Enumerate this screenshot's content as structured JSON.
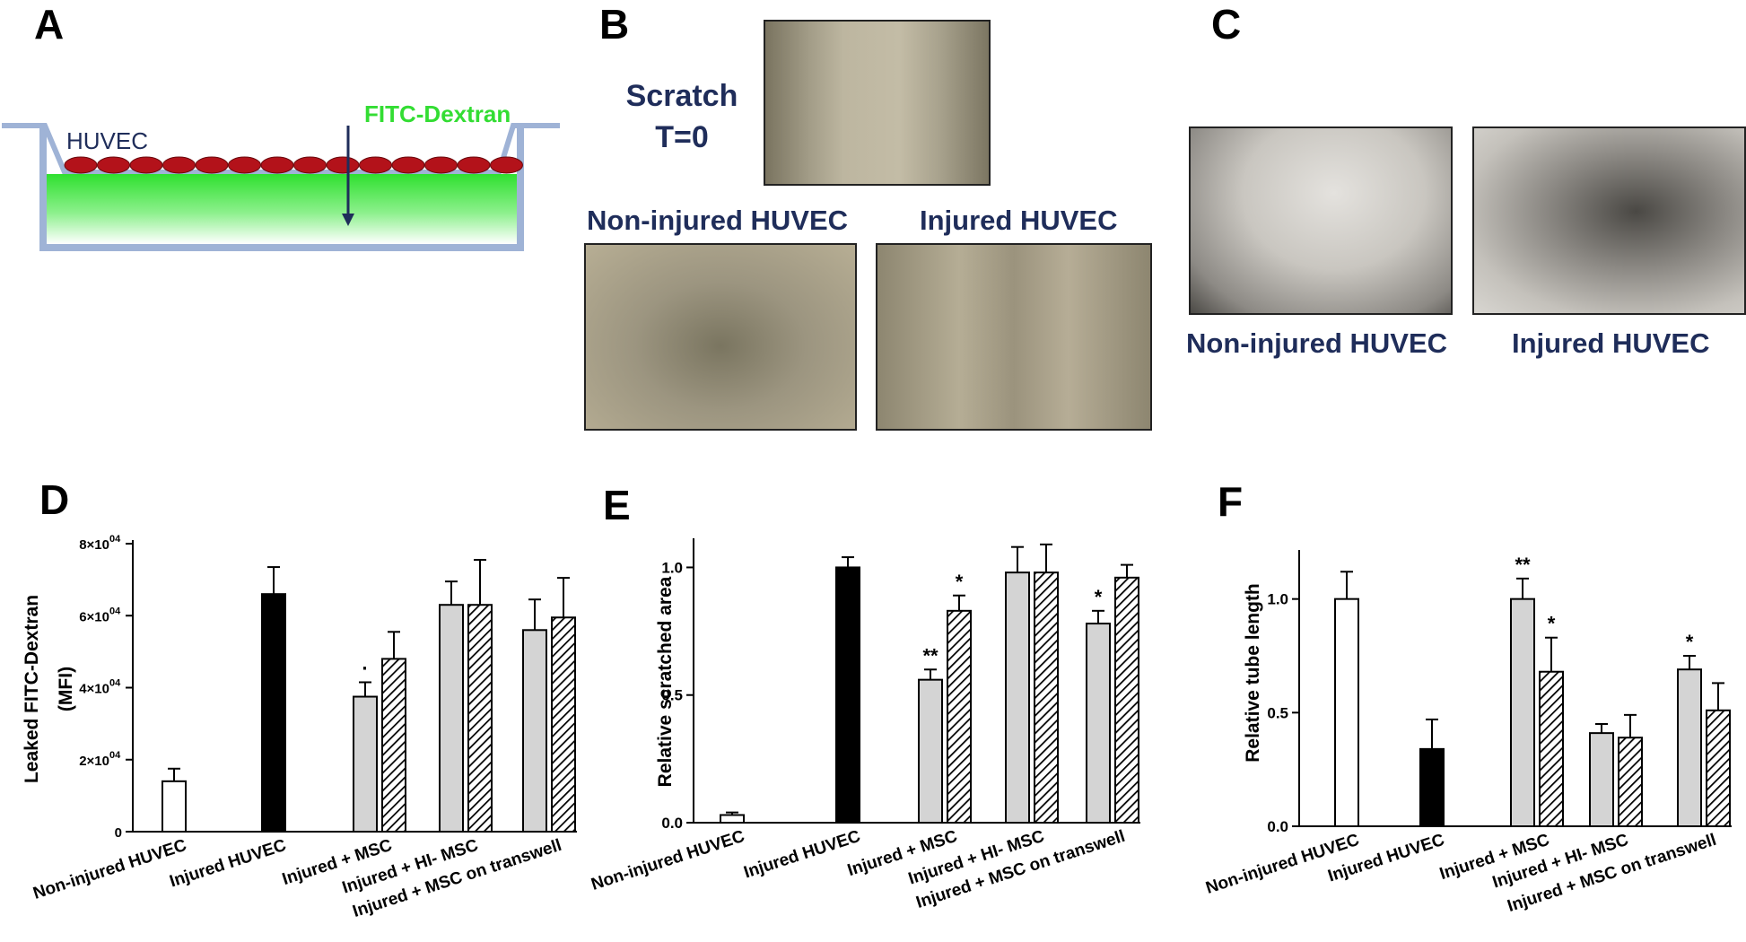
{
  "panels": {
    "a": {
      "letter": "A",
      "cells_label": "HUVEC",
      "dye_label": "FITC-Dextran",
      "colors": {
        "cells": "#b3121a",
        "dye": "#3be03b",
        "well": "#9fb3d6",
        "label": "#1f2d5a"
      }
    },
    "b": {
      "letter": "B",
      "scratch_title_line1": "Scratch",
      "scratch_title_line2": "T=0",
      "left_caption": "Non-injured HUVEC",
      "right_caption": "Injured HUVEC"
    },
    "c": {
      "letter": "C",
      "left_caption": "Non-injured HUVEC",
      "right_caption": "Injured HUVEC"
    },
    "d": {
      "letter": "D"
    },
    "e": {
      "letter": "E"
    },
    "f": {
      "letter": "F"
    }
  },
  "chart_data": [
    {
      "id": "D",
      "type": "bar",
      "ylabel_line1": "Leaked FITC-Dextran",
      "ylabel_line2": "(MFI)",
      "ylim": [
        0,
        80000
      ],
      "ytick_values": [
        0,
        20000,
        40000,
        60000,
        80000
      ],
      "ytick_labels": [
        "0",
        "2×10",
        "4×10",
        "6×10",
        "8×10"
      ],
      "ytick_exponent": "04",
      "categories": [
        "Non-injured HUVEC",
        "Injured HUVEC",
        "Injured + MSC",
        "Injured + HI- MSC",
        "Injured + MSC on transwell"
      ],
      "bars": [
        {
          "group": 0,
          "style": "white",
          "value": 14000,
          "err": 3500,
          "sig": ""
        },
        {
          "group": 1,
          "style": "black",
          "value": 66000,
          "err": 7500,
          "sig": ""
        },
        {
          "group": 2,
          "style": "gray",
          "value": 37500,
          "err": 4000,
          "sig": "·"
        },
        {
          "group": 2,
          "style": "hatch",
          "value": 48000,
          "err": 7500,
          "sig": ""
        },
        {
          "group": 3,
          "style": "gray",
          "value": 63000,
          "err": 6500,
          "sig": ""
        },
        {
          "group": 3,
          "style": "hatch",
          "value": 63000,
          "err": 12500,
          "sig": ""
        },
        {
          "group": 4,
          "style": "gray",
          "value": 56000,
          "err": 8500,
          "sig": ""
        },
        {
          "group": 4,
          "style": "hatch",
          "value": 59500,
          "err": 11000,
          "sig": ""
        }
      ]
    },
    {
      "id": "E",
      "type": "bar",
      "ylabel_line1": "Relative scratched area",
      "ylabel_line2": "",
      "ylim": [
        0,
        1.1
      ],
      "ytick_values": [
        0,
        0.5,
        1.0
      ],
      "ytick_labels": [
        "0.0",
        "0.5",
        "1.0"
      ],
      "ytick_exponent": "",
      "categories": [
        "Non-injured HUVEC",
        "Injured HUVEC",
        "Injured + MSC",
        "Injured + HI- MSC",
        "Injured + MSC on transwell"
      ],
      "bars": [
        {
          "group": 0,
          "style": "white",
          "value": 0.03,
          "err": 0.01,
          "sig": ""
        },
        {
          "group": 1,
          "style": "black",
          "value": 1.0,
          "err": 0.04,
          "sig": ""
        },
        {
          "group": 2,
          "style": "gray",
          "value": 0.56,
          "err": 0.04,
          "sig": "**"
        },
        {
          "group": 2,
          "style": "hatch",
          "value": 0.83,
          "err": 0.06,
          "sig": "*"
        },
        {
          "group": 3,
          "style": "gray",
          "value": 0.98,
          "err": 0.1,
          "sig": ""
        },
        {
          "group": 3,
          "style": "hatch",
          "value": 0.98,
          "err": 0.11,
          "sig": ""
        },
        {
          "group": 4,
          "style": "gray",
          "value": 0.78,
          "err": 0.05,
          "sig": "*"
        },
        {
          "group": 4,
          "style": "hatch",
          "value": 0.96,
          "err": 0.05,
          "sig": ""
        }
      ]
    },
    {
      "id": "F",
      "type": "bar",
      "ylabel_line1": "Relative tube length",
      "ylabel_line2": "",
      "ylim": [
        0,
        1.2
      ],
      "ytick_values": [
        0,
        0.5,
        1.0
      ],
      "ytick_labels": [
        "0.0",
        "0.5",
        "1.0"
      ],
      "ytick_exponent": "",
      "categories": [
        "Non-injured HUVEC",
        "Injured HUVEC",
        "Injured + MSC",
        "Injured + HI- MSC",
        "Injured + MSC on transwell"
      ],
      "bars": [
        {
          "group": 0,
          "style": "white",
          "value": 1.0,
          "err": 0.12,
          "sig": ""
        },
        {
          "group": 1,
          "style": "black",
          "value": 0.34,
          "err": 0.13,
          "sig": ""
        },
        {
          "group": 2,
          "style": "gray",
          "value": 1.0,
          "err": 0.09,
          "sig": "**"
        },
        {
          "group": 2,
          "style": "hatch",
          "value": 0.68,
          "err": 0.15,
          "sig": "*"
        },
        {
          "group": 3,
          "style": "gray",
          "value": 0.41,
          "err": 0.04,
          "sig": ""
        },
        {
          "group": 3,
          "style": "hatch",
          "value": 0.39,
          "err": 0.1,
          "sig": ""
        },
        {
          "group": 4,
          "style": "gray",
          "value": 0.69,
          "err": 0.06,
          "sig": "*"
        },
        {
          "group": 4,
          "style": "hatch",
          "value": 0.51,
          "err": 0.12,
          "sig": ""
        }
      ]
    }
  ]
}
